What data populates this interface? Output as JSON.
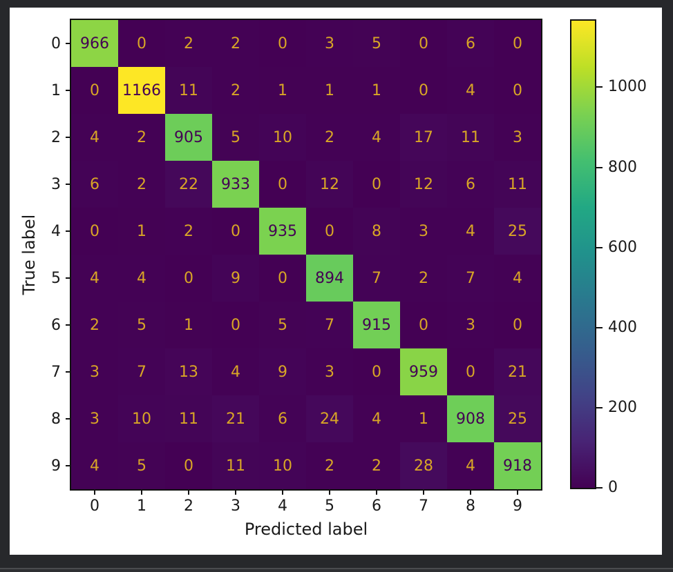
{
  "app": {
    "background_color": "#27282b",
    "figure_background": "#ffffff",
    "spine_color": "#111111",
    "tick_text_color": "#1a1a1a"
  },
  "chart_data": {
    "type": "heatmap",
    "title": "",
    "xlabel": "Predicted label",
    "ylabel": "True label",
    "x_tick_labels": [
      "0",
      "1",
      "2",
      "3",
      "4",
      "5",
      "6",
      "7",
      "8",
      "9"
    ],
    "y_tick_labels": [
      "0",
      "1",
      "2",
      "3",
      "4",
      "5",
      "6",
      "7",
      "8",
      "9"
    ],
    "matrix": [
      [
        966,
        0,
        2,
        2,
        0,
        3,
        5,
        0,
        6,
        0
      ],
      [
        0,
        1166,
        11,
        2,
        1,
        1,
        1,
        0,
        4,
        0
      ],
      [
        4,
        2,
        905,
        5,
        10,
        2,
        4,
        17,
        11,
        3
      ],
      [
        6,
        2,
        22,
        933,
        0,
        12,
        0,
        12,
        6,
        11
      ],
      [
        0,
        1,
        2,
        0,
        935,
        0,
        8,
        3,
        4,
        25
      ],
      [
        4,
        4,
        0,
        9,
        0,
        894,
        7,
        2,
        7,
        4
      ],
      [
        2,
        5,
        1,
        0,
        5,
        7,
        915,
        0,
        3,
        0
      ],
      [
        3,
        7,
        13,
        4,
        9,
        3,
        0,
        959,
        0,
        21
      ],
      [
        3,
        10,
        11,
        21,
        6,
        24,
        4,
        1,
        908,
        25
      ],
      [
        4,
        5,
        0,
        11,
        10,
        2,
        2,
        28,
        4,
        918
      ]
    ],
    "vmin": 0,
    "vmax": 1166,
    "colormap": "viridis",
    "grid": false,
    "annotation_color_low": "#d9a626",
    "annotation_color_high": "#440154",
    "colorbar": {
      "position": "right",
      "ticks": [
        0,
        200,
        400,
        600,
        800,
        1000
      ]
    }
  }
}
